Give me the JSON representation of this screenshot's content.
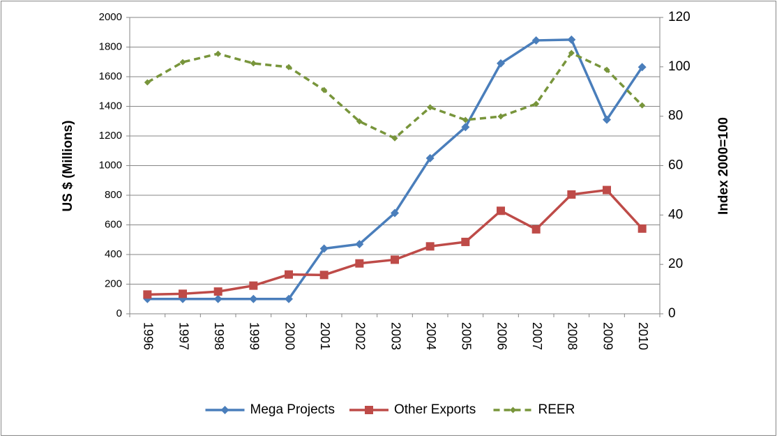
{
  "chart_data": {
    "type": "line",
    "categories": [
      "1996",
      "1997",
      "1998",
      "1999",
      "2000",
      "2001",
      "2002",
      "2003",
      "2004",
      "2005",
      "2006",
      "2007",
      "2008",
      "2009",
      "2010"
    ],
    "ylabel": "US $ (Millions)",
    "y2label": "Index 2000=100",
    "ylim": [
      0,
      2000
    ],
    "yticks": [
      0,
      200,
      400,
      600,
      800,
      1000,
      1200,
      1400,
      1600,
      1800,
      2000
    ],
    "y2lim": [
      0,
      120
    ],
    "y2ticks": [
      0,
      20,
      40,
      60,
      80,
      100,
      120
    ],
    "grid": true,
    "legend": "bottom",
    "series": [
      {
        "name": "Mega Projects",
        "color": "#4a7ebb",
        "marker": "diamond",
        "dash": false,
        "values": [
          100,
          100,
          100,
          100,
          100,
          440,
          470,
          680,
          1050,
          1260,
          1690,
          1845,
          1850,
          1310,
          1665
        ]
      },
      {
        "name": "Other Exports",
        "color": "#be4b48",
        "marker": "square",
        "dash": false,
        "values": [
          130,
          135,
          150,
          190,
          265,
          262,
          340,
          365,
          455,
          485,
          695,
          570,
          805,
          835,
          575
        ]
      },
      {
        "name": "REER",
        "color": "#78953b",
        "marker": "diamond",
        "dash": true,
        "axis": "y2",
        "values": [
          93.7,
          101.9,
          105.3,
          101.4,
          99.9,
          90.6,
          77.9,
          71.1,
          83.6,
          78.5,
          79.9,
          85,
          105.6,
          98.8,
          84.4
        ]
      }
    ]
  }
}
